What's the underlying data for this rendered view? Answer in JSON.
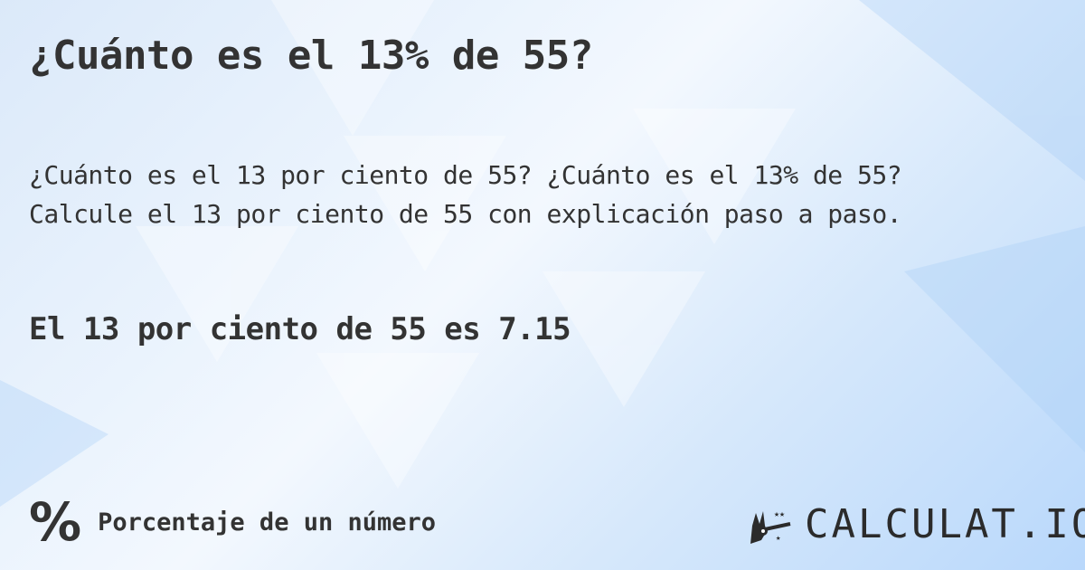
{
  "title": "¿Cuánto es el 13% de 55?",
  "description": [
    "¿Cuánto es el 13 por ciento de 55? ¿Cuánto es el 13% de 55?",
    "Calcule el 13 por ciento de 55 con explicación paso a paso."
  ],
  "answer": "El 13 por ciento de 55 es 7.15",
  "footer": {
    "icon": "percent-icon",
    "category": "Porcentaje de un número"
  },
  "logo": {
    "text": "CALCULAT.IO",
    "icon": "magic-hand-icon"
  }
}
